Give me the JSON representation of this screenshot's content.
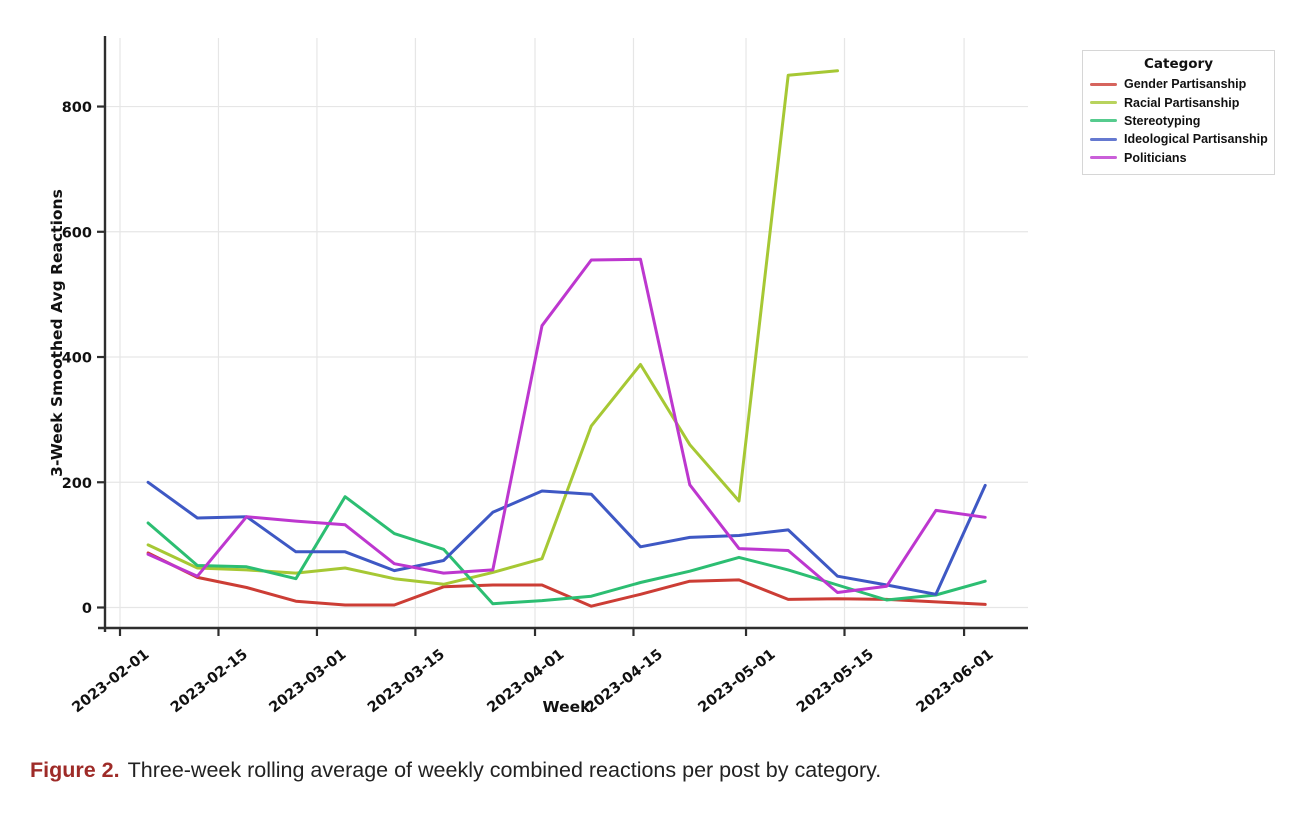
{
  "figure": {
    "caption_label": "Figure 2.",
    "caption_text": "Three-week rolling average of weekly combined reactions per post by category.",
    "caption_label_color": "#9e2b28"
  },
  "chart_data": {
    "type": "line",
    "title": "",
    "xlabel": "Week",
    "ylabel": "3-Week Smoothed Avg Reactions",
    "legend_title": "Category",
    "legend_position": "outside top-right",
    "grid": true,
    "ylim": [
      0,
      880
    ],
    "y_ticks": [
      0,
      200,
      400,
      600,
      800
    ],
    "y_tick_labels": [
      "0",
      "200",
      "400",
      "600",
      "800"
    ],
    "x_tick_labels": [
      "2023-02-01",
      "2023-02-15",
      "2023-03-01",
      "2023-03-15",
      "2023-04-01",
      "2023-04-15",
      "2023-05-01",
      "2023-05-15",
      "2023-06-01"
    ],
    "x_tick_days": [
      0,
      14,
      28,
      42,
      59,
      73,
      89,
      103,
      120
    ],
    "x_unit": "days since 2023-02-01",
    "x_dates": [
      "2023-02-05",
      "2023-02-12",
      "2023-02-19",
      "2023-02-26",
      "2023-03-05",
      "2023-03-12",
      "2023-03-19",
      "2023-03-26",
      "2023-04-02",
      "2023-04-09",
      "2023-04-16",
      "2023-04-23",
      "2023-04-30",
      "2023-05-07",
      "2023-05-14",
      "2023-05-21",
      "2023-05-28",
      "2023-06-04"
    ],
    "x_days": [
      4,
      11,
      18,
      25,
      32,
      39,
      46,
      53,
      60,
      67,
      74,
      81,
      88,
      95,
      102,
      109,
      116,
      123
    ],
    "series": [
      {
        "name": "Gender Partisanship",
        "color": "#cc3d35",
        "values": [
          87,
          48,
          32,
          10,
          4,
          4,
          33,
          36,
          36,
          2,
          21,
          42,
          44,
          13,
          14,
          13,
          9,
          5
        ]
      },
      {
        "name": "Racial Partisanship",
        "color": "#a6c834",
        "values": [
          100,
          63,
          60,
          55,
          63,
          46,
          37,
          56,
          78,
          290,
          388,
          260,
          170,
          850,
          857,
          null,
          null,
          null
        ]
      },
      {
        "name": "Stereotyping",
        "color": "#2cbe72",
        "values": [
          135,
          67,
          65,
          46,
          177,
          118,
          93,
          6,
          11,
          18,
          40,
          58,
          80,
          60,
          36,
          12,
          20,
          42
        ]
      },
      {
        "name": "Ideological Partisanship",
        "color": "#3e58c4",
        "values": [
          200,
          143,
          145,
          89,
          89,
          59,
          75,
          152,
          186,
          181,
          97,
          112,
          115,
          124,
          50,
          36,
          21,
          195
        ]
      },
      {
        "name": "Politicians",
        "color": "#bd37cf",
        "values": [
          85,
          50,
          145,
          138,
          132,
          70,
          55,
          60,
          450,
          555,
          556,
          196,
          94,
          91,
          24,
          34,
          155,
          144
        ]
      }
    ]
  }
}
